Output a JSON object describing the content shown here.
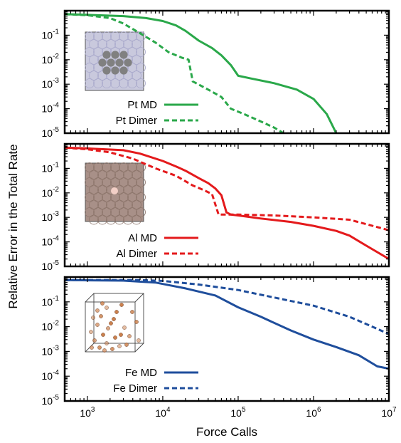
{
  "chart_data": [
    {
      "type": "line",
      "xscale": "log",
      "yscale": "log",
      "xlim": [
        500,
        10000000
      ],
      "ylim": [
        1e-05,
        1
      ],
      "x_ticks": [
        1000,
        10000,
        100000,
        1000000,
        10000000
      ],
      "y_ticks": [
        0.1,
        0.01,
        0.001,
        0.0001,
        1e-05
      ],
      "legend_position": "lower-left",
      "series": [
        {
          "name": "Pt MD",
          "color": "#2aa84a",
          "style": "solid",
          "points": [
            [
              500,
              0.72
            ],
            [
              1000,
              0.68
            ],
            [
              3000,
              0.6
            ],
            [
              6000,
              0.5
            ],
            [
              10000,
              0.38
            ],
            [
              15000,
              0.25
            ],
            [
              20000,
              0.15
            ],
            [
              30000,
              0.06
            ],
            [
              45000,
              0.03
            ],
            [
              60000,
              0.015
            ],
            [
              80000,
              0.006
            ],
            [
              100000,
              0.0022
            ],
            [
              150000,
              0.0017
            ],
            [
              300000,
              0.0011
            ],
            [
              600000,
              0.0006
            ],
            [
              1000000,
              0.00025
            ],
            [
              1500000,
              6e-05
            ],
            [
              2000000,
              1e-05
            ]
          ]
        },
        {
          "name": "Pt Dimer",
          "color": "#2aa84a",
          "style": "dashed",
          "points": [
            [
              500,
              0.72
            ],
            [
              1000,
              0.65
            ],
            [
              2000,
              0.5
            ],
            [
              3000,
              0.3
            ],
            [
              5000,
              0.12
            ],
            [
              8000,
              0.05
            ],
            [
              12000,
              0.02
            ],
            [
              18000,
              0.012
            ],
            [
              22000,
              0.01
            ],
            [
              25000,
              0.0013
            ],
            [
              40000,
              0.0006
            ],
            [
              60000,
              0.0003
            ],
            [
              80000,
              0.0001
            ],
            [
              120000,
              6e-05
            ],
            [
              200000,
              3e-05
            ],
            [
              300000,
              1.7e-05
            ],
            [
              400000,
              1e-05
            ]
          ]
        }
      ]
    },
    {
      "type": "line",
      "xscale": "log",
      "yscale": "log",
      "xlim": [
        500,
        10000000
      ],
      "ylim": [
        1e-05,
        1
      ],
      "x_ticks": [
        1000,
        10000,
        100000,
        1000000,
        10000000
      ],
      "y_ticks": [
        0.1,
        0.01,
        0.001,
        0.0001,
        1e-05
      ],
      "legend_position": "lower-left",
      "series": [
        {
          "name": "Al MD",
          "color": "#e41a1c",
          "style": "solid",
          "points": [
            [
              500,
              0.7
            ],
            [
              1000,
              0.65
            ],
            [
              3000,
              0.55
            ],
            [
              5000,
              0.4
            ],
            [
              10000,
              0.2
            ],
            [
              15000,
              0.12
            ],
            [
              20000,
              0.08
            ],
            [
              30000,
              0.04
            ],
            [
              40000,
              0.025
            ],
            [
              50000,
              0.015
            ],
            [
              60000,
              0.008
            ],
            [
              70000,
              0.0016
            ],
            [
              80000,
              0.0013
            ],
            [
              100000,
              0.0012
            ],
            [
              200000,
              0.0009
            ],
            [
              500000,
              0.00065
            ],
            [
              1000000,
              0.00045
            ],
            [
              2000000,
              0.00028
            ],
            [
              3000000,
              0.00018
            ],
            [
              5000000,
              7e-05
            ],
            [
              10000000,
              2e-05
            ]
          ]
        },
        {
          "name": "Al Dimer",
          "color": "#e41a1c",
          "style": "dashed",
          "points": [
            [
              500,
              0.7
            ],
            [
              1000,
              0.6
            ],
            [
              2000,
              0.45
            ],
            [
              4000,
              0.25
            ],
            [
              8000,
              0.1
            ],
            [
              15000,
              0.05
            ],
            [
              25000,
              0.02
            ],
            [
              35000,
              0.013
            ],
            [
              45000,
              0.009
            ],
            [
              55000,
              0.0013
            ],
            [
              100000,
              0.0013
            ],
            [
              300000,
              0.0012
            ],
            [
              1000000,
              0.001
            ],
            [
              3000000,
              0.0008
            ],
            [
              10000000,
              0.0003
            ]
          ]
        }
      ]
    },
    {
      "type": "line",
      "xscale": "log",
      "yscale": "log",
      "xlim": [
        500,
        10000000
      ],
      "ylim": [
        1e-05,
        1
      ],
      "x_ticks": [
        1000,
        10000,
        100000,
        1000000,
        10000000
      ],
      "y_ticks": [
        0.1,
        0.01,
        0.001,
        0.0001,
        1e-05
      ],
      "legend_position": "lower-left",
      "series": [
        {
          "name": "Fe MD",
          "color": "#1f4e9c",
          "style": "solid",
          "points": [
            [
              500,
              0.75
            ],
            [
              3000,
              0.72
            ],
            [
              8000,
              0.6
            ],
            [
              20000,
              0.35
            ],
            [
              50000,
              0.18
            ],
            [
              100000,
              0.06
            ],
            [
              200000,
              0.025
            ],
            [
              500000,
              0.007
            ],
            [
              1000000,
              0.003
            ],
            [
              2000000,
              0.0015
            ],
            [
              4000000,
              0.0007
            ],
            [
              7000000,
              0.00025
            ],
            [
              10000000,
              0.0002
            ]
          ]
        },
        {
          "name": "Fe Dimer",
          "color": "#1f4e9c",
          "style": "dashed",
          "points": [
            [
              500,
              0.75
            ],
            [
              5000,
              0.75
            ],
            [
              10000,
              0.7
            ],
            [
              30000,
              0.5
            ],
            [
              100000,
              0.3
            ],
            [
              300000,
              0.15
            ],
            [
              1000000,
              0.07
            ],
            [
              3000000,
              0.025
            ],
            [
              6000000,
              0.01
            ],
            [
              10000000,
              0.005
            ]
          ]
        }
      ]
    }
  ],
  "xlabel": "Force Calls",
  "ylabel": "Relative Error in the Total Rate",
  "inset_images": [
    {
      "description": "Pt surface lattice with cluster",
      "bg": "#c9c9dd",
      "grid": "#aaaacc",
      "atom": "#808080"
    },
    {
      "description": "Al surface lattice with adatom",
      "bg": "#a89088",
      "grid": "#8d766c",
      "atom": "#f2cfc6"
    },
    {
      "description": "Fe atoms in simulation box",
      "atom": "#c87a44"
    }
  ]
}
